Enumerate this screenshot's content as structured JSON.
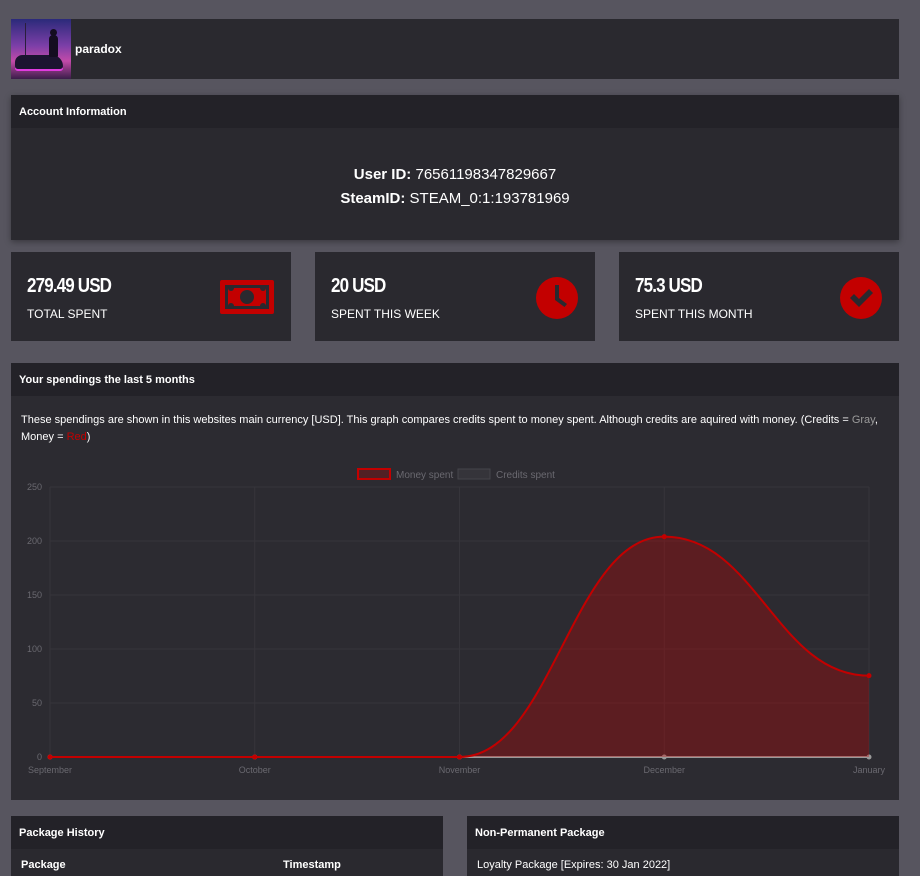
{
  "profile": {
    "username": "paradox"
  },
  "account": {
    "title": "Account Information",
    "user_id_label": "User ID:",
    "user_id": "76561198347829667",
    "steam_id_label": "SteamID:",
    "steam_id": "STEAM_0:1:193781969"
  },
  "stats": [
    {
      "value": "279.49 USD",
      "label": "TOTAL SPENT",
      "icon": "money-bill-icon"
    },
    {
      "value": "20 USD",
      "label": "SPENT THIS WEEK",
      "icon": "clock-icon"
    },
    {
      "value": "75.3 USD",
      "label": "SPENT THIS MONTH",
      "icon": "check-circle-icon"
    }
  ],
  "spendings": {
    "title": "Your spendings the last 5 months",
    "desc_main": "These spendings are shown in this websites main currency [USD]. This graph compares credits spent to money spent. Although credits are aquired with money. (Credits = ",
    "desc_gray": "Gray",
    "desc_mid": ", Money = ",
    "desc_red": "Red",
    "desc_end": ")"
  },
  "chart_data": {
    "type": "area",
    "categories": [
      "September",
      "October",
      "November",
      "December",
      "January"
    ],
    "series": [
      {
        "name": "Money spent",
        "values": [
          0,
          0,
          0,
          204,
          75.3
        ],
        "color": "#c30000"
      },
      {
        "name": "Credits spent",
        "values": [
          0,
          0,
          0,
          0,
          0
        ],
        "color": "#9a9a9a"
      }
    ],
    "ylim": [
      0,
      250
    ],
    "yticks": [
      "0",
      "50",
      "100",
      "150",
      "200",
      "250"
    ],
    "legend": "top",
    "grid": true
  },
  "package_history": {
    "title": "Package History",
    "col_package": "Package",
    "col_timestamp": "Timestamp"
  },
  "non_permanent": {
    "title": "Non-Permanent Package",
    "item": "Loyalty Package [Expires: 30 Jan 2022]"
  },
  "colors": {
    "accent": "#c30000",
    "panel": "#2a292f",
    "header": "#232228",
    "background": "#57555f"
  }
}
